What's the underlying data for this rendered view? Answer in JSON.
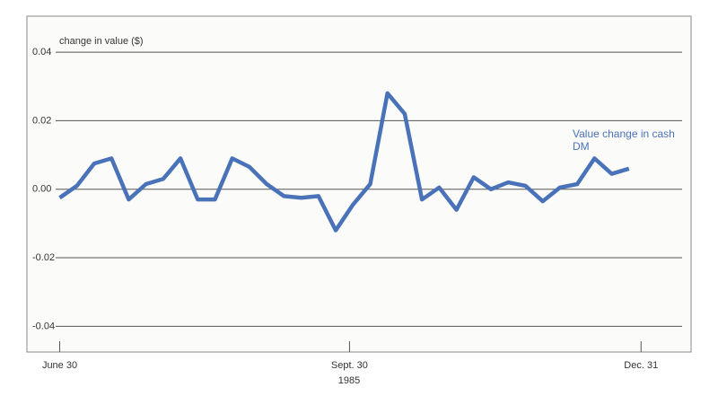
{
  "chart_data": {
    "type": "line",
    "ylabel": "change in value ($)",
    "xlabel": "1985",
    "x": [
      0,
      1,
      2,
      3,
      4,
      5,
      6,
      7,
      8,
      9,
      10,
      11,
      12,
      13,
      14,
      15,
      16,
      17,
      18,
      19,
      20,
      21,
      22,
      23,
      24,
      25,
      26,
      27,
      28,
      29,
      30,
      31,
      32,
      33
    ],
    "series": [
      {
        "name": "Value change in cash DM",
        "color": "#4a72b8",
        "values": [
          -0.0025,
          0.001,
          0.0075,
          0.009,
          -0.003,
          0.0015,
          0.003,
          0.009,
          -0.003,
          -0.003,
          0.009,
          0.0065,
          0.0015,
          -0.002,
          -0.0025,
          -0.002,
          -0.012,
          -0.0045,
          0.0015,
          0.028,
          0.022,
          -0.003,
          0.0005,
          -0.006,
          0.0035,
          0.0,
          0.002,
          0.001,
          -0.0035,
          0.0005,
          0.0015,
          0.009,
          0.0045,
          0.006
        ]
      }
    ],
    "xlim": [
      -1.9,
      36.6
    ],
    "xticks": [
      {
        "value": 0,
        "label": "June 30"
      },
      {
        "value": 16.8,
        "label": "Sept. 30"
      },
      {
        "value": 33.7,
        "label": "Dec. 31"
      }
    ],
    "ylim": [
      -0.0475,
      0.0505
    ],
    "yticks": [
      0.04,
      0.02,
      {
        "value": 0,
        "label": "0.00"
      },
      -0.02,
      -0.04
    ],
    "grid": true
  }
}
